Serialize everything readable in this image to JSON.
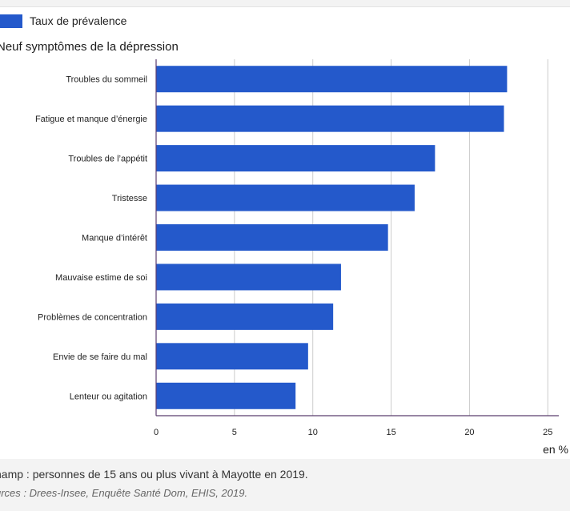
{
  "legend": {
    "label": "Taux de prévalence",
    "color": "#2459cb"
  },
  "footer": {
    "field": "hamp : personnes de 15 ans ou plus vivant à Mayotte en 2019.",
    "sources": "urces : Drees-Insee, Enquête Santé Dom, EHIS, 2019."
  },
  "chart_data": {
    "type": "bar",
    "orientation": "horizontal",
    "title": "Neuf symptômes de la dépression",
    "xlabel": "en %",
    "categories": [
      "Troubles du sommeil",
      "Fatigue et manque d’énergie",
      "Troubles de l’appétit",
      "Tristesse",
      "Manque d’intérêt",
      "Mauvaise estime de soi",
      "Problèmes de concentration",
      "Envie de se faire du mal",
      "Lenteur ou agitation"
    ],
    "series": [
      {
        "name": "Taux de prévalence",
        "values": [
          22.4,
          22.2,
          17.8,
          16.5,
          14.8,
          11.8,
          11.3,
          9.7,
          8.9
        ]
      }
    ],
    "xticks": [
      0,
      5,
      10,
      15,
      20,
      25
    ],
    "xlim": [
      0,
      25.7
    ],
    "grid": true,
    "legend_position": "top-left"
  }
}
